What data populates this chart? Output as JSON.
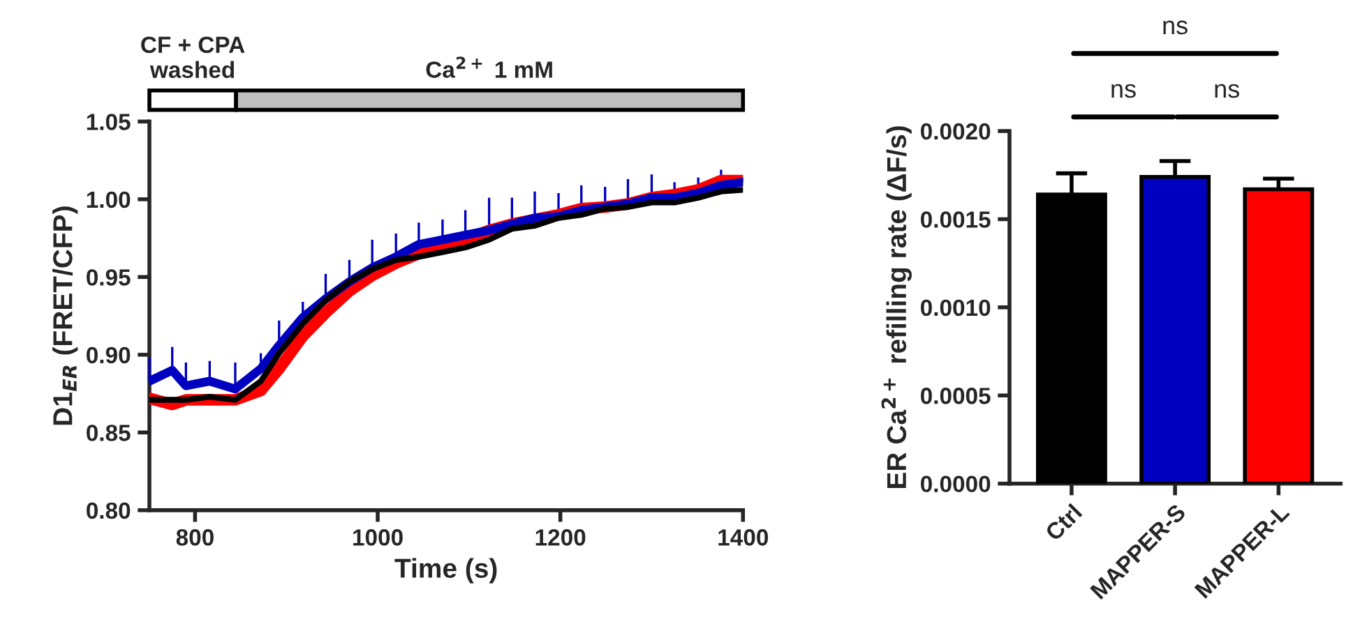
{
  "chart_data": [
    {
      "type": "line",
      "xlabel": "Time (s)",
      "ylabel": "D1$_{ER}$ (FRET/CFP)",
      "grid": false,
      "legend": false,
      "marker": "none",
      "line_style": "solid",
      "x": [
        750,
        775,
        790,
        816,
        844,
        872,
        892,
        918,
        943,
        969,
        994,
        1020,
        1045,
        1071,
        1096,
        1122,
        1147,
        1172,
        1198,
        1223,
        1249,
        1274,
        1300,
        1325,
        1351,
        1376,
        1399
      ],
      "xlim": [
        750,
        1400
      ],
      "xticks": [
        800,
        1000,
        1200,
        1400
      ],
      "ylim": [
        0.8,
        1.05
      ],
      "yticks": [
        {
          "value": 0.8,
          "label": "0.80"
        },
        {
          "value": 0.85,
          "label": "0.85"
        },
        {
          "value": 0.9,
          "label": "0.90"
        },
        {
          "value": 0.95,
          "label": "0.95"
        },
        {
          "value": 1.0,
          "label": "1.00"
        },
        {
          "value": 1.05,
          "label": "1.05"
        }
      ],
      "annotations": [
        "CF + CPA\nwashed",
        "Ca$^{2+}$ 1 mM"
      ],
      "series": [
        {
          "color": "#ff0000",
          "values": [
            0.872,
            0.868,
            0.871,
            0.871,
            0.871,
            0.877,
            0.891,
            0.912,
            0.927,
            0.941,
            0.951,
            0.959,
            0.965,
            0.971,
            0.974,
            0.98,
            0.984,
            0.987,
            0.99,
            0.994,
            0.995,
            0.997,
            1.001,
            1.003,
            1.006,
            1.012,
            1.012
          ]
        },
        {
          "color": "#0000c0",
          "values": [
            0.883,
            0.89,
            0.88,
            0.883,
            0.878,
            0.891,
            0.906,
            0.924,
            0.936,
            0.947,
            0.956,
            0.963,
            0.971,
            0.974,
            0.977,
            0.98,
            0.984,
            0.988,
            0.989,
            0.993,
            0.995,
            0.997,
            1.001,
            1.001,
            1.004,
            1.009,
            1.011
          ],
          "errors": [
            [
              0.883,
              0.898
            ],
            [
              0.89,
              0.905
            ],
            [
              0.88,
              0.895
            ],
            [
              0.883,
              0.896
            ],
            [
              0.878,
              0.895
            ],
            [
              0.891,
              0.901
            ],
            [
              0.906,
              0.922
            ],
            [
              0.924,
              0.934
            ],
            [
              0.936,
              0.952
            ],
            [
              0.947,
              0.961
            ],
            [
              0.956,
              0.974
            ],
            [
              0.963,
              0.978
            ],
            [
              0.971,
              0.985
            ],
            [
              0.974,
              0.987
            ],
            [
              0.977,
              0.993
            ],
            [
              0.98,
              1.001
            ],
            [
              0.984,
              1.001
            ],
            [
              0.988,
              1.005
            ],
            [
              0.989,
              1.004
            ],
            [
              0.993,
              1.009
            ],
            [
              0.995,
              1.008
            ],
            [
              0.997,
              1.013
            ],
            [
              1.001,
              1.016
            ],
            [
              1.001,
              1.011
            ],
            [
              1.004,
              1.014
            ],
            [
              1.009,
              1.019
            ],
            [
              1.011,
              1.014
            ]
          ]
        },
        {
          "color": "#000000",
          "values": [
            0.871,
            0.871,
            0.871,
            0.873,
            0.871,
            0.883,
            0.901,
            0.92,
            0.935,
            0.947,
            0.955,
            0.961,
            0.963,
            0.966,
            0.969,
            0.974,
            0.981,
            0.983,
            0.988,
            0.99,
            0.994,
            0.995,
            0.998,
            0.998,
            1.001,
            1.005,
            1.006
          ]
        }
      ]
    },
    {
      "type": "bar",
      "ylabel": "ER Ca$^{2+}$ refilling rate (ΔF/s)",
      "grid": false,
      "legend": false,
      "categories": [
        "Ctrl",
        "MAPPER-S",
        "MAPPER-L"
      ],
      "values": [
        0.00164,
        0.00174,
        0.00167
      ],
      "colors": [
        "#000000",
        "#0000c0",
        "#ff0000"
      ],
      "errors": [
        [
          0.00164,
          0.00176
        ],
        [
          0.00174,
          0.00183
        ],
        [
          0.00167,
          0.00173
        ]
      ],
      "ylim": [
        0,
        0.002
      ],
      "yticks": [
        {
          "value": 0,
          "label": "0.0000"
        },
        {
          "value": 0.0005,
          "label": "0.0005"
        },
        {
          "value": 0.001,
          "label": "0.0010"
        },
        {
          "value": 0.0015,
          "label": "0.0015"
        },
        {
          "value": 0.002,
          "label": "0.0020"
        }
      ],
      "annotations": [
        "ns",
        "ns",
        "ns"
      ]
    }
  ]
}
